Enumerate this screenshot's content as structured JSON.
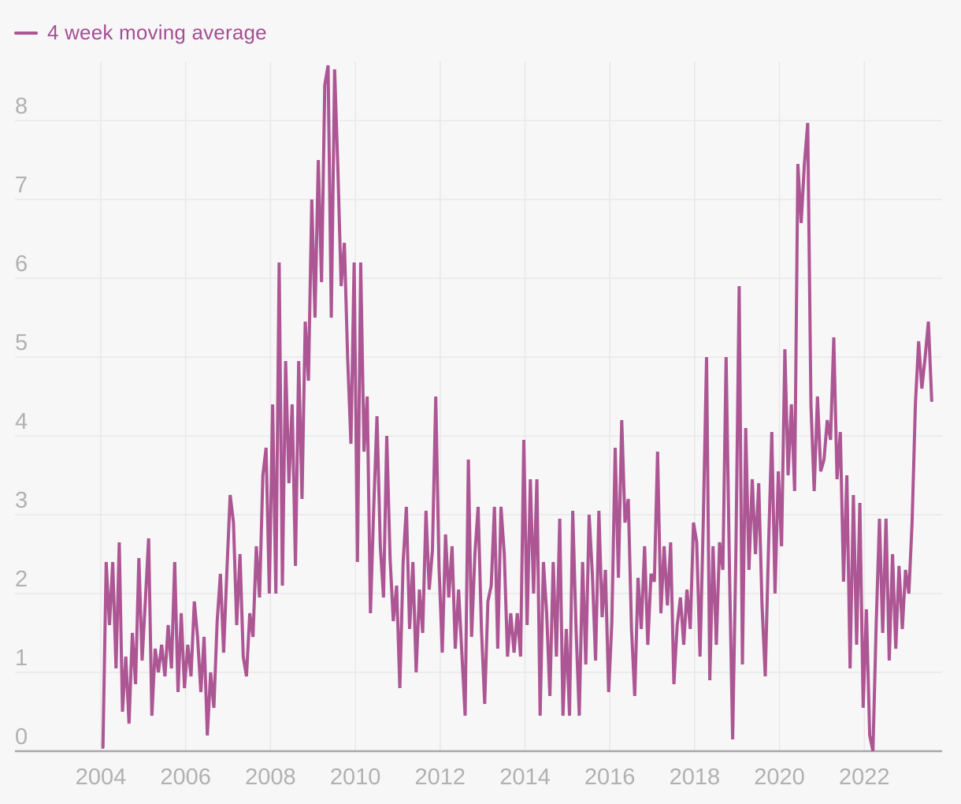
{
  "legend": {
    "label": "4 week moving average"
  },
  "colors": {
    "background": "#f8f7f8",
    "line": "#ad5694",
    "legend_text": "#a44f93",
    "gridline": "#e9e7e9",
    "axis_line": "#a8a6a8",
    "tick_label": "#b2b0b2"
  },
  "chart_data": {
    "type": "line",
    "title": "",
    "xlabel": "",
    "ylabel": "",
    "grid": true,
    "legend_position": "top-left",
    "x_ticks": [
      2004,
      2006,
      2008,
      2010,
      2012,
      2014,
      2016,
      2018,
      2020,
      2022
    ],
    "y_ticks": [
      0,
      1,
      2,
      3,
      4,
      5,
      6,
      7,
      8
    ],
    "xlim": [
      2003.6,
      2023.85
    ],
    "ylim": [
      0,
      8.8
    ],
    "series": [
      {
        "name": "4 week moving average",
        "x_start": 2004.05,
        "x_step": 0.0769231,
        "values": [
          0.05,
          2.4,
          1.6,
          2.4,
          1.05,
          2.65,
          0.5,
          1.2,
          0.35,
          1.5,
          0.85,
          2.45,
          1.15,
          1.9,
          2.7,
          0.45,
          1.3,
          1.0,
          1.35,
          0.95,
          1.6,
          1.05,
          2.4,
          0.75,
          1.75,
          0.8,
          1.35,
          0.95,
          1.9,
          1.45,
          0.75,
          1.45,
          0.2,
          1.0,
          0.55,
          1.65,
          2.25,
          1.25,
          2.3,
          3.25,
          2.9,
          1.6,
          2.5,
          1.2,
          0.95,
          1.75,
          1.45,
          2.6,
          1.95,
          3.5,
          3.85,
          2.0,
          4.4,
          2.0,
          6.2,
          2.1,
          4.95,
          3.4,
          4.4,
          2.35,
          4.95,
          3.2,
          5.45,
          4.7,
          7.0,
          5.5,
          7.5,
          5.95,
          8.45,
          8.7,
          5.5,
          8.65,
          7.4,
          5.9,
          6.45,
          5.0,
          3.9,
          6.2,
          2.4,
          6.2,
          3.8,
          4.5,
          1.75,
          3.1,
          4.25,
          2.6,
          1.95,
          4.0,
          2.45,
          1.65,
          2.1,
          0.8,
          2.4,
          3.1,
          1.55,
          2.4,
          1.0,
          2.05,
          1.5,
          3.05,
          2.05,
          2.55,
          4.5,
          2.35,
          1.25,
          2.75,
          1.95,
          2.6,
          1.3,
          2.05,
          1.25,
          0.45,
          3.7,
          1.45,
          2.5,
          3.1,
          1.55,
          0.6,
          1.9,
          2.1,
          3.1,
          1.3,
          3.1,
          2.5,
          1.2,
          1.75,
          1.25,
          1.75,
          1.2,
          3.95,
          1.6,
          3.45,
          2.0,
          3.45,
          0.45,
          2.4,
          1.75,
          0.7,
          2.4,
          1.2,
          2.95,
          0.45,
          1.55,
          0.45,
          3.05,
          1.55,
          0.45,
          2.4,
          1.1,
          3.0,
          2.25,
          1.15,
          3.05,
          1.7,
          2.3,
          0.75,
          1.65,
          3.85,
          2.2,
          4.2,
          2.9,
          3.2,
          1.55,
          0.7,
          2.2,
          1.55,
          2.6,
          1.35,
          2.25,
          2.15,
          3.8,
          1.75,
          2.6,
          1.85,
          2.65,
          0.85,
          1.6,
          1.95,
          1.35,
          2.05,
          1.55,
          2.9,
          2.65,
          1.2,
          2.9,
          5.0,
          0.9,
          2.6,
          1.35,
          2.65,
          2.3,
          5.0,
          2.35,
          0.15,
          2.5,
          5.9,
          1.1,
          4.1,
          2.3,
          3.45,
          2.5,
          3.4,
          1.85,
          0.95,
          2.6,
          4.05,
          2.0,
          3.55,
          2.6,
          5.1,
          3.5,
          4.4,
          3.3,
          7.45,
          6.7,
          7.45,
          7.97,
          4.4,
          3.3,
          4.5,
          3.55,
          3.7,
          4.2,
          3.95,
          5.25,
          3.45,
          4.05,
          2.15,
          3.5,
          1.05,
          3.25,
          1.35,
          3.15,
          0.55,
          1.8,
          0.2,
          0.0,
          1.6,
          2.95,
          1.5,
          2.95,
          1.15,
          2.5,
          1.3,
          2.35,
          1.55,
          2.3,
          2.0,
          2.9,
          4.4,
          5.2,
          4.6,
          5.0,
          5.45,
          4.45
        ]
      }
    ]
  }
}
